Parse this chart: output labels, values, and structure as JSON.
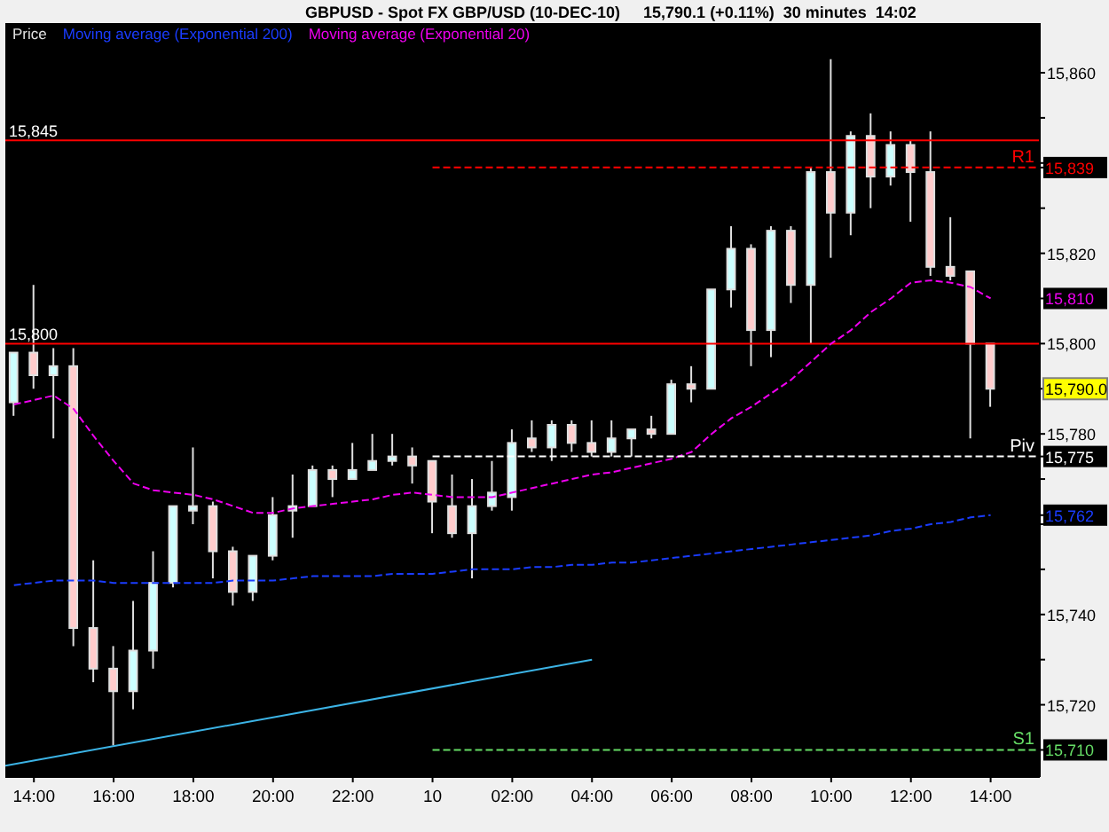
{
  "chart_data": {
    "type": "candlestick",
    "title": "GBPUSD - Spot FX GBP/USD (10-DEC-10)",
    "subtitle": "15,790.1 (+0.11%)",
    "annotations": [
      "30 minutes",
      "14:02"
    ],
    "x": [
      "--12-09T13:30",
      "--12-09T14:00",
      "--12-09T14:30",
      "--12-09T15:00",
      "--12-09T15:30",
      "--12-09T16:00",
      "--12-09T16:30",
      "--12-09T17:00",
      "--12-09T17:30",
      "--12-09T18:00",
      "--12-09T18:30",
      "--12-09T19:00",
      "--12-09T19:30",
      "--12-09T20:00",
      "--12-09T20:30",
      "--12-09T21:00",
      "--12-09T21:30",
      "--12-09T22:00",
      "--12-09T22:30",
      "--12-09T23:00",
      "--12-09T23:30",
      "--12-10T00:00",
      "--12-10T00:30",
      "--12-10T01:00",
      "--12-10T01:30",
      "--12-10T02:00",
      "--12-10T02:30",
      "--12-10T03:00",
      "--12-10T03:30",
      "--12-10T04:00",
      "--12-10T04:30",
      "--12-10T05:00",
      "--12-10T05:30",
      "--12-10T06:00",
      "--12-10T06:30",
      "--12-10T07:00",
      "--12-10T07:30",
      "--12-10T08:00",
      "--12-10T08:30",
      "--12-10T09:00",
      "--12-10T09:30",
      "--12-10T10:00",
      "--12-10T10:30",
      "--12-10T11:00",
      "--12-10T11:30",
      "--12-10T12:00",
      "--12-10T12:30",
      "--12-10T13:00",
      "--12-10T13:30",
      "--12-10T14:00"
    ],
    "series": [
      {
        "name": "Price",
        "color": "#e0e0e0",
        "ohlc": [
          [
            15787,
            15798,
            15784,
            15798
          ],
          [
            15798,
            15813,
            15790,
            15793
          ],
          [
            15793,
            15799,
            15779,
            15795
          ],
          [
            15795,
            15799,
            15733,
            15737
          ],
          [
            15737,
            15752,
            15725,
            15728
          ],
          [
            15728,
            15733,
            15711,
            15723
          ],
          [
            15723,
            15743,
            15719,
            15732
          ],
          [
            15732,
            15754,
            15728,
            15747
          ],
          [
            15747,
            15764,
            15746,
            15764
          ],
          [
            15763,
            15777,
            15760,
            15764
          ],
          [
            15764,
            15765,
            15748,
            15754
          ],
          [
            15754,
            15755,
            15742,
            15745
          ],
          [
            15745,
            15753,
            15743,
            15753
          ],
          [
            15753,
            15766,
            15752,
            15762
          ],
          [
            15763,
            15771,
            15757,
            15764
          ],
          [
            15764,
            15773,
            15764,
            15772
          ],
          [
            15772,
            15773,
            15766,
            15770
          ],
          [
            15770,
            15778,
            15770,
            15772
          ],
          [
            15772,
            15780,
            15772,
            15774
          ],
          [
            15774,
            15780,
            15773,
            15775
          ],
          [
            15775,
            15777,
            15769,
            15773
          ],
          [
            15774,
            15774,
            15758,
            15765
          ],
          [
            15764,
            15771,
            15757,
            15758
          ],
          [
            15758,
            15770,
            15748,
            15764
          ],
          [
            15764,
            15774,
            15763,
            15767
          ],
          [
            15766,
            15781,
            15763,
            15778
          ],
          [
            15779,
            15783,
            15776,
            15777
          ],
          [
            15777,
            15783,
            15774,
            15782
          ],
          [
            15782,
            15783,
            15776,
            15778
          ],
          [
            15778,
            15783,
            15775,
            15776
          ],
          [
            15776,
            15783,
            15775,
            15779
          ],
          [
            15779,
            15781,
            15775,
            15781
          ],
          [
            15781,
            15784,
            15779,
            15780
          ],
          [
            15780,
            15792,
            15780,
            15791
          ],
          [
            15791,
            15795,
            15787,
            15790
          ],
          [
            15790,
            15812,
            15790,
            15812
          ],
          [
            15812,
            15826,
            15808,
            15821
          ],
          [
            15821,
            15822,
            15795,
            15803
          ],
          [
            15803,
            15826,
            15797,
            15825
          ],
          [
            15825,
            15826,
            15809,
            15813
          ],
          [
            15813,
            15839,
            15800,
            15838
          ],
          [
            15838,
            15863,
            15819,
            15829
          ],
          [
            15829,
            15847,
            15824,
            15846
          ],
          [
            15846,
            15851,
            15830,
            15837
          ],
          [
            15837,
            15847,
            15835,
            15844
          ],
          [
            15844,
            15845,
            15827,
            15838
          ],
          [
            15838,
            15847,
            15815,
            15817
          ],
          [
            15817,
            15828,
            15814,
            15815
          ],
          [
            15816,
            15816,
            15779,
            15800
          ],
          [
            15800,
            15800,
            15786,
            15790
          ]
        ],
        "colors": [
          "#ccffff",
          "#ffcccc",
          "#ccffff",
          "#ffcccc",
          "#ffcccc",
          "#ffcccc",
          "#ccffff",
          "#ccffff",
          "#ccffff",
          "#ccffff",
          "#ffcccc",
          "#ffcccc",
          "#ccffff",
          "#ccffff",
          "#ccffff",
          "#ccffff",
          "#ffcccc",
          "#ccffff",
          "#ccffff",
          "#ccffff",
          "#ffcccc",
          "#ffcccc",
          "#ffcccc",
          "#ccffff",
          "#ccffff",
          "#ccffff",
          "#ffcccc",
          "#ccffff",
          "#ffcccc",
          "#ffcccc",
          "#ccffff",
          "#ccffff",
          "#ffcccc",
          "#ccffff",
          "#ffcccc",
          "#ccffff",
          "#ccffff",
          "#ffcccc",
          "#ccffff",
          "#ffcccc",
          "#ccffff",
          "#ffcccc",
          "#ccffff",
          "#ffcccc",
          "#ccffff",
          "#ffcccc",
          "#ffcccc",
          "#ffcccc",
          "#ffcccc",
          "#ffcccc"
        ]
      },
      {
        "name": "Moving average (Exponential 200)",
        "type": "line",
        "color": "#1a3cff",
        "line_style": "dashed",
        "values": [
          15746.5,
          15747,
          15747.5,
          15747.5,
          15747.5,
          15747,
          15747,
          15747,
          15747,
          15747,
          15747,
          15747.5,
          15747.5,
          15747.5,
          15748,
          15748.5,
          15748.5,
          15748.5,
          15748.5,
          15749,
          15749,
          15749,
          15749.5,
          15750,
          15750,
          15750,
          15750.5,
          15750.5,
          15751,
          15751,
          15751.5,
          15751.5,
          15752,
          15752.5,
          15753,
          15753.5,
          15754,
          15754.5,
          15755,
          15755.5,
          15756,
          15756.5,
          15757,
          15757.5,
          15758.5,
          15759,
          15760,
          15760.5,
          15761.5,
          15762
        ]
      },
      {
        "name": "Moving average (Exponential 20)",
        "type": "line",
        "color": "#ee00ee",
        "line_style": "dashed",
        "values": [
          15786.5,
          15787.5,
          15788.5,
          15785.5,
          15779.5,
          15774,
          15769,
          15767.5,
          15767,
          15766.5,
          15765.5,
          15764,
          15762.5,
          15762.5,
          15763.5,
          15764,
          15764.5,
          15765,
          15765.5,
          15766.5,
          15767,
          15766.5,
          15766,
          15766,
          15766,
          15767,
          15768,
          15769,
          15770,
          15771,
          15771.5,
          15772.5,
          15773.5,
          15774.5,
          15776,
          15780,
          15783.5,
          15786,
          15789,
          15792,
          15796,
          15800,
          15803,
          15807,
          15810,
          15813.5,
          15814,
          15813.5,
          15812.5,
          15810
        ]
      },
      {
        "name": "R1",
        "type": "line",
        "color": "#ff0000",
        "line_style": "dashed",
        "x": [
          "--12-10T00:00",
          "--12-10T15:14"
        ],
        "values": [
          15839,
          15839
        ]
      },
      {
        "name": "Piv",
        "type": "line",
        "color": "#ffffff",
        "line_style": "dashed",
        "x": [
          "--12-10T00:00",
          "--12-10T15:14"
        ],
        "values": [
          15775,
          15775
        ]
      },
      {
        "name": "S1",
        "type": "line",
        "color": "#66dd66",
        "line_style": "dashed",
        "x": [
          "--12-10T00:00",
          "--12-10T15:14"
        ],
        "values": [
          15710,
          15710
        ]
      },
      {
        "type": "line",
        "color": "#3cb4e6",
        "line_style": "solid",
        "x": [
          "--12-09T13:17",
          "--12-10T04:00"
        ],
        "values": [
          15706.5,
          15730
        ]
      }
    ],
    "ref_lines": [
      {
        "axis": "y",
        "value": 15845,
        "label": "15,845",
        "color": "#ff0000"
      },
      {
        "axis": "y",
        "value": 15800,
        "label": "15,800",
        "color": "#ff0000"
      }
    ],
    "xlim": [
      "--12-09T13:17",
      "--12-10T15:14"
    ],
    "xticks": [
      {
        "value": "--12-09T14:00",
        "label": "14:00"
      },
      {
        "value": "--12-09T16:00",
        "label": "16:00"
      },
      {
        "value": "--12-09T18:00",
        "label": "18:00"
      },
      {
        "value": "--12-09T20:00",
        "label": "20:00"
      },
      {
        "value": "--12-09T22:00",
        "label": "22:00"
      },
      {
        "value": "--12-10T00:00",
        "label": "10"
      },
      {
        "value": "--12-10T02:00",
        "label": "02:00"
      },
      {
        "value": "--12-10T04:00",
        "label": "04:00"
      },
      {
        "value": "--12-10T06:00",
        "label": "06:00"
      },
      {
        "value": "--12-10T08:00",
        "label": "08:00"
      },
      {
        "value": "--12-10T10:00",
        "label": "10:00"
      },
      {
        "value": "--12-10T12:00",
        "label": "12:00"
      },
      {
        "value": "--12-10T14:00",
        "label": "14:00"
      }
    ],
    "ylim": [
      15704,
      15871
    ],
    "yticks": [
      {
        "value": 15710,
        "label": "15,710"
      },
      {
        "value": 15720,
        "label": "15,720"
      },
      {
        "value": 15730,
        "label": null
      },
      {
        "value": 15740,
        "label": "15,740"
      },
      {
        "value": 15750,
        "label": null
      },
      {
        "value": 15760,
        "label": null
      },
      {
        "value": 15762,
        "label": "15,762"
      },
      {
        "value": 15770,
        "label": null
      },
      {
        "value": 15775,
        "label": "15,775"
      },
      {
        "value": 15780,
        "label": "15,780"
      },
      {
        "value": 15790,
        "label": "15,790.0"
      },
      {
        "value": 15800,
        "label": "15,800"
      },
      {
        "value": 15810,
        "label": "15,810"
      },
      {
        "value": 15820,
        "label": "15,820"
      },
      {
        "value": 15830,
        "label": null
      },
      {
        "value": 15839,
        "label": "15,839"
      },
      {
        "value": 15840,
        "label": null
      },
      {
        "value": 15850,
        "label": null
      },
      {
        "value": 15860,
        "label": "15,860"
      }
    ],
    "legend": "top left",
    "marker": "none"
  }
}
